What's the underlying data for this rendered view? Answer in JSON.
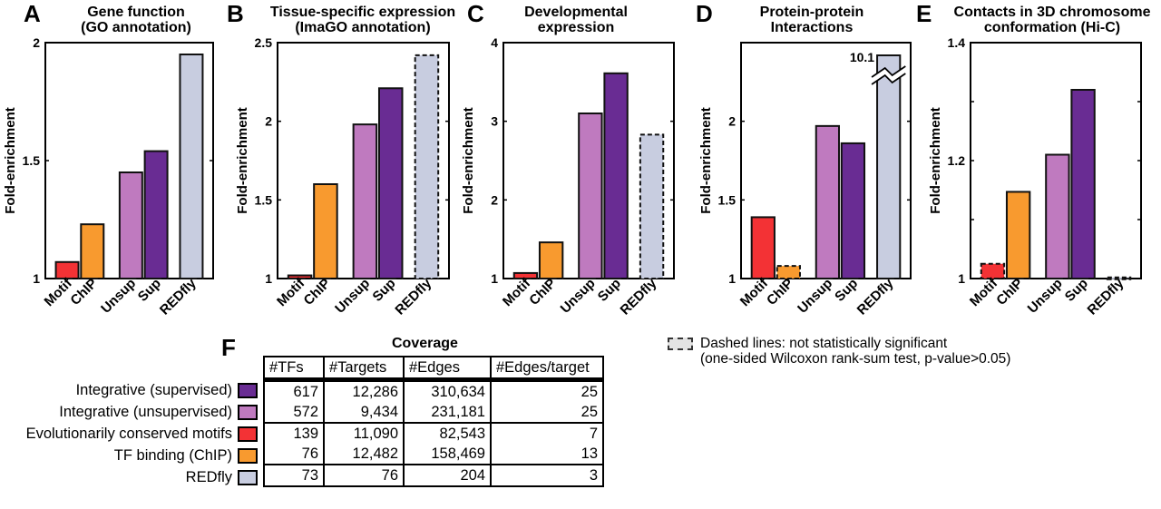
{
  "colors": {
    "Motif": "#f33235",
    "ChIP": "#f89a2f",
    "Unsup": "#bf7abf",
    "Sup": "#692c93",
    "REDfly": "#c8cde0"
  },
  "chart_data": [
    {
      "type": "bar",
      "panel": "A",
      "title": "Gene function (GO annotation)",
      "title_lines": [
        "Gene function",
        "(GO annotation)"
      ],
      "xlabel": "",
      "ylabel": "Fold-enrichment",
      "categories": [
        "Motif",
        "ChIP",
        "Unsup",
        "Sup",
        "REDfly"
      ],
      "values": [
        1.07,
        1.23,
        1.45,
        1.54,
        1.95
      ],
      "not_significant": [
        false,
        false,
        false,
        false,
        false
      ],
      "ylim": [
        1,
        2
      ],
      "yticks": [
        1,
        1.5,
        2
      ],
      "ytick_labels": [
        "1",
        "1.5",
        "2"
      ]
    },
    {
      "type": "bar",
      "panel": "B",
      "title": "Tissue-specific expression (ImaGO annotation)",
      "title_lines": [
        "Tissue-specific expression",
        "(ImaGO annotation)"
      ],
      "xlabel": "",
      "ylabel": "Fold-enrichment",
      "categories": [
        "Motif",
        "ChIP",
        "Unsup",
        "Sup",
        "REDfly"
      ],
      "values": [
        1.02,
        1.6,
        1.98,
        2.21,
        2.42
      ],
      "not_significant": [
        false,
        false,
        false,
        false,
        true
      ],
      "ylim": [
        1,
        2.5
      ],
      "yticks": [
        1,
        1.5,
        2,
        2.5
      ],
      "ytick_labels": [
        "1",
        "1.5",
        "2",
        "2.5"
      ]
    },
    {
      "type": "bar",
      "panel": "C",
      "title": "Developmental expression",
      "title_lines": [
        "Developmental",
        "expression"
      ],
      "xlabel": "",
      "ylabel": "Fold-enrichment",
      "categories": [
        "Motif",
        "ChIP",
        "Unsup",
        "Sup",
        "REDfly"
      ],
      "values": [
        1.07,
        1.46,
        3.1,
        3.61,
        2.83
      ],
      "not_significant": [
        false,
        false,
        false,
        false,
        true
      ],
      "ylim": [
        1,
        4
      ],
      "yticks": [
        1,
        2,
        3,
        4
      ],
      "ytick_labels": [
        "1",
        "2",
        "3",
        "4"
      ]
    },
    {
      "type": "bar",
      "panel": "D",
      "title": "Protein-protein Interactions",
      "title_lines": [
        "Protein-protein",
        "Interactions"
      ],
      "xlabel": "",
      "ylabel": "Fold-enrichment",
      "categories": [
        "Motif",
        "ChIP",
        "Unsup",
        "Sup",
        "REDfly"
      ],
      "values": [
        1.39,
        1.08,
        1.97,
        1.86,
        10.1
      ],
      "not_significant": [
        false,
        true,
        false,
        false,
        false
      ],
      "broken_bar": {
        "category": "REDfly",
        "label": "10.1"
      },
      "ylim": [
        1,
        2.5
      ],
      "yticks": [
        1,
        1.5,
        2
      ],
      "ytick_labels": [
        "1",
        "1.5",
        "2"
      ]
    },
    {
      "type": "bar",
      "panel": "E",
      "title": "Contacts in 3D chromosome conformation (Hi-C)",
      "title_lines": [
        "Contacts in 3D chromosome",
        "conformation (Hi-C)"
      ],
      "xlabel": "",
      "ylabel": "Fold-enrichment",
      "categories": [
        "Motif",
        "ChIP",
        "Unsup",
        "Sup",
        "REDfly"
      ],
      "values": [
        1.025,
        1.147,
        1.21,
        1.32,
        1.002
      ],
      "not_significant": [
        true,
        false,
        false,
        false,
        true
      ],
      "ylim": [
        1,
        1.4
      ],
      "yticks": [
        1,
        1.1,
        1.2,
        1.3,
        1.4
      ],
      "ytick_labels": [
        "1",
        "",
        "1.2",
        "",
        "1.4"
      ]
    }
  ],
  "legend": {
    "text_line1": "Dashed lines: not statistically significant",
    "text_line2": "(one-sided Wilcoxon rank-sum test, p-value>0.05)"
  },
  "coverage": {
    "panel_label": "F",
    "title": "Coverage",
    "columns": [
      "#TFs",
      "#Targets",
      "#Edges",
      "#Edges/target"
    ],
    "rows": [
      {
        "label": "Integrative (supervised)",
        "color_key": "Sup",
        "values": [
          "617",
          "12,286",
          "310,634",
          "25"
        ]
      },
      {
        "label": "Integrative (unsupervised)",
        "color_key": "Unsup",
        "values": [
          "572",
          "9,434",
          "231,181",
          "25"
        ]
      },
      {
        "label": "Evolutionarily conserved motifs",
        "color_key": "Motif",
        "values": [
          "139",
          "11,090",
          "82,543",
          "7"
        ]
      },
      {
        "label": "TF binding (ChIP)",
        "color_key": "ChIP",
        "values": [
          "76",
          "12,482",
          "158,469",
          "13"
        ]
      },
      {
        "label": "REDfly",
        "color_key": "REDfly",
        "values": [
          "73",
          "76",
          "204",
          "3"
        ]
      }
    ]
  }
}
